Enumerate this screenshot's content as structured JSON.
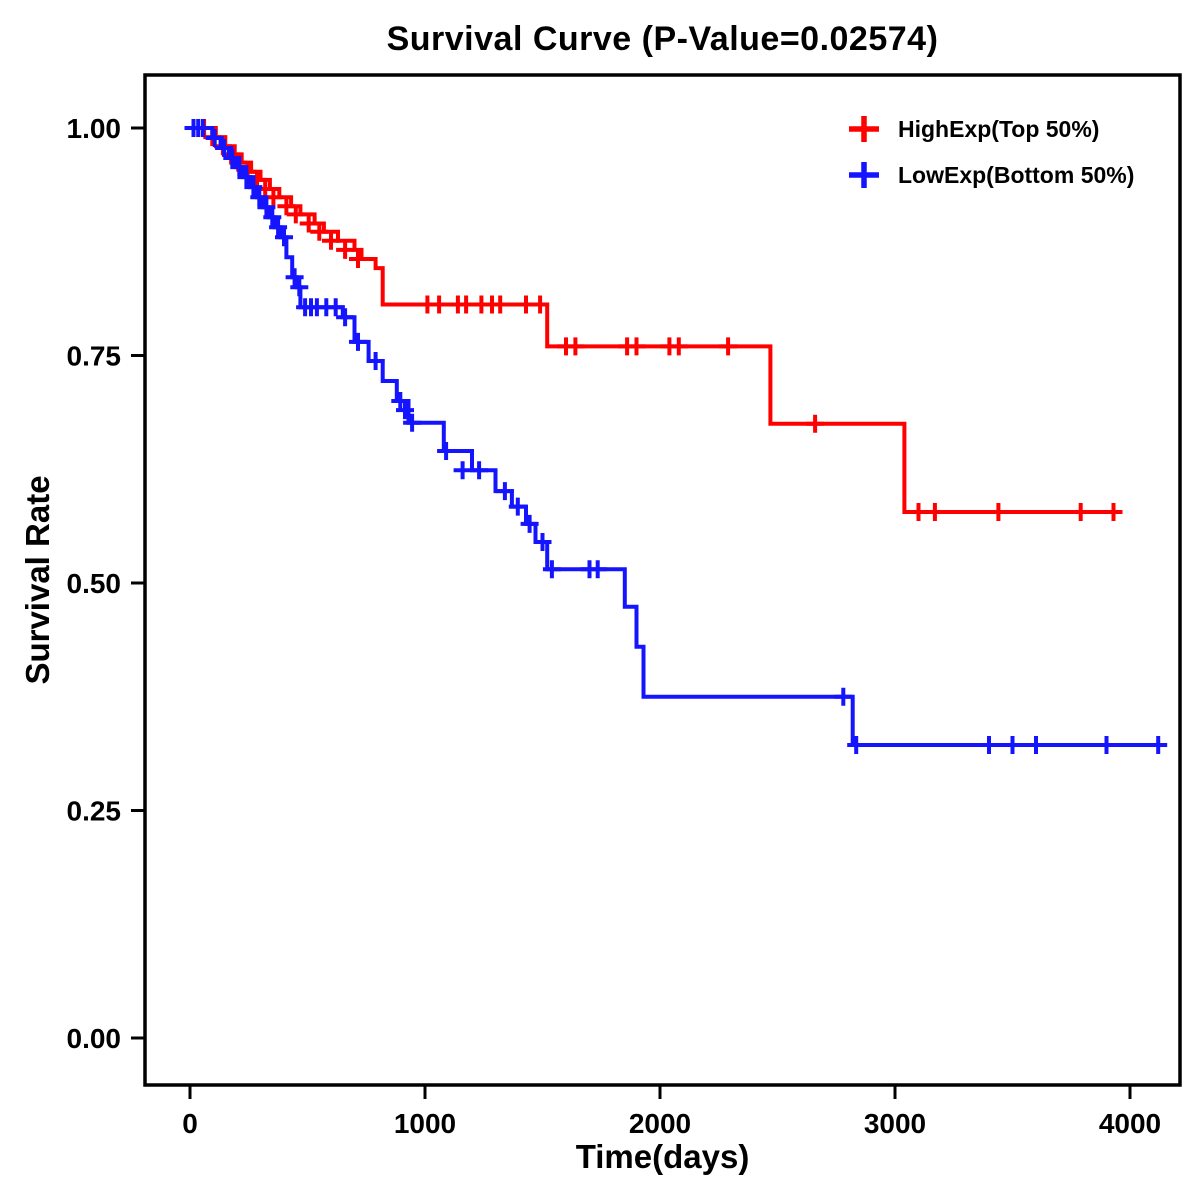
{
  "chart_data": {
    "type": "line",
    "subtype": "kaplan-meier-step",
    "title": "Survival Curve (P-Value=0.02574)",
    "p_value": 0.02574,
    "xlabel": "Time(days)",
    "ylabel": "Survival Rate",
    "xlim": [
      0,
      4200
    ],
    "ylim": [
      0.0,
      1.0
    ],
    "grid": false,
    "legend_position": "top-right",
    "x_ticks": [
      0,
      1000,
      2000,
      3000,
      4000
    ],
    "x_tick_labels": [
      "0",
      "1000",
      "2000",
      "3000",
      "4000"
    ],
    "y_ticks": [
      0.0,
      0.25,
      0.5,
      0.75,
      1.0
    ],
    "y_tick_labels": [
      "0.00",
      "0.25",
      "0.50",
      "0.75",
      "1.00"
    ],
    "series": [
      {
        "name": "HighExp(Top 50%)",
        "color": "#FF0000",
        "steps": [
          [
            0,
            1.0
          ],
          [
            110,
            0.99
          ],
          [
            150,
            0.98
          ],
          [
            190,
            0.971
          ],
          [
            220,
            0.962
          ],
          [
            260,
            0.952
          ],
          [
            300,
            0.943
          ],
          [
            340,
            0.933
          ],
          [
            380,
            0.924
          ],
          [
            430,
            0.914
          ],
          [
            470,
            0.905
          ],
          [
            530,
            0.895
          ],
          [
            570,
            0.886
          ],
          [
            630,
            0.876
          ],
          [
            700,
            0.866
          ],
          [
            730,
            0.856
          ],
          [
            790,
            0.846
          ],
          [
            820,
            0.806
          ],
          [
            1520,
            0.76
          ],
          [
            2470,
            0.675
          ],
          [
            3040,
            0.578
          ],
          [
            3950,
            0.578
          ]
        ],
        "censors": [
          [
            60,
            1.0
          ],
          [
            95,
            0.99
          ],
          [
            140,
            0.98
          ],
          [
            175,
            0.971
          ],
          [
            205,
            0.962
          ],
          [
            245,
            0.952
          ],
          [
            285,
            0.943
          ],
          [
            320,
            0.933
          ],
          [
            355,
            0.924
          ],
          [
            410,
            0.914
          ],
          [
            450,
            0.905
          ],
          [
            505,
            0.895
          ],
          [
            550,
            0.886
          ],
          [
            600,
            0.876
          ],
          [
            660,
            0.866
          ],
          [
            715,
            0.856
          ],
          [
            1010,
            0.806
          ],
          [
            1060,
            0.806
          ],
          [
            1140,
            0.806
          ],
          [
            1175,
            0.806
          ],
          [
            1240,
            0.806
          ],
          [
            1285,
            0.806
          ],
          [
            1320,
            0.806
          ],
          [
            1430,
            0.806
          ],
          [
            1490,
            0.806
          ],
          [
            1600,
            0.76
          ],
          [
            1640,
            0.76
          ],
          [
            1860,
            0.76
          ],
          [
            1900,
            0.76
          ],
          [
            2040,
            0.76
          ],
          [
            2080,
            0.76
          ],
          [
            2290,
            0.76
          ],
          [
            2660,
            0.675
          ],
          [
            3100,
            0.578
          ],
          [
            3170,
            0.578
          ],
          [
            3440,
            0.578
          ],
          [
            3790,
            0.578
          ],
          [
            3930,
            0.578
          ]
        ]
      },
      {
        "name": "LowExp(Bottom 50%)",
        "color": "#1414FF",
        "steps": [
          [
            0,
            1.0
          ],
          [
            95,
            0.989
          ],
          [
            130,
            0.978
          ],
          [
            165,
            0.967
          ],
          [
            195,
            0.957
          ],
          [
            225,
            0.946
          ],
          [
            255,
            0.935
          ],
          [
            285,
            0.924
          ],
          [
            310,
            0.913
          ],
          [
            335,
            0.902
          ],
          [
            360,
            0.891
          ],
          [
            385,
            0.88
          ],
          [
            410,
            0.858
          ],
          [
            435,
            0.836
          ],
          [
            455,
            0.825
          ],
          [
            470,
            0.803
          ],
          [
            650,
            0.792
          ],
          [
            700,
            0.765
          ],
          [
            760,
            0.744
          ],
          [
            820,
            0.722
          ],
          [
            880,
            0.7
          ],
          [
            930,
            0.676
          ],
          [
            1080,
            0.645
          ],
          [
            1200,
            0.624
          ],
          [
            1300,
            0.601
          ],
          [
            1370,
            0.584
          ],
          [
            1430,
            0.565
          ],
          [
            1470,
            0.545
          ],
          [
            1520,
            0.515
          ],
          [
            1850,
            0.474
          ],
          [
            1900,
            0.43
          ],
          [
            1930,
            0.375
          ],
          [
            2820,
            0.322
          ],
          [
            4150,
            0.322
          ]
        ],
        "censors": [
          [
            15,
            1.0
          ],
          [
            35,
            1.0
          ],
          [
            55,
            1.0
          ],
          [
            105,
            0.989
          ],
          [
            145,
            0.978
          ],
          [
            180,
            0.967
          ],
          [
            210,
            0.957
          ],
          [
            240,
            0.946
          ],
          [
            270,
            0.935
          ],
          [
            295,
            0.924
          ],
          [
            325,
            0.913
          ],
          [
            350,
            0.902
          ],
          [
            375,
            0.891
          ],
          [
            400,
            0.88
          ],
          [
            445,
            0.836
          ],
          [
            465,
            0.825
          ],
          [
            490,
            0.803
          ],
          [
            515,
            0.803
          ],
          [
            540,
            0.803
          ],
          [
            580,
            0.803
          ],
          [
            620,
            0.803
          ],
          [
            660,
            0.792
          ],
          [
            715,
            0.765
          ],
          [
            790,
            0.744
          ],
          [
            895,
            0.7
          ],
          [
            915,
            0.69
          ],
          [
            945,
            0.676
          ],
          [
            1090,
            0.645
          ],
          [
            1160,
            0.624
          ],
          [
            1230,
            0.624
          ],
          [
            1340,
            0.601
          ],
          [
            1395,
            0.584
          ],
          [
            1445,
            0.565
          ],
          [
            1500,
            0.545
          ],
          [
            1540,
            0.515
          ],
          [
            1700,
            0.515
          ],
          [
            1735,
            0.515
          ],
          [
            2780,
            0.375
          ],
          [
            2835,
            0.322
          ],
          [
            3400,
            0.322
          ],
          [
            3500,
            0.322
          ],
          [
            3600,
            0.322
          ],
          [
            3900,
            0.322
          ],
          [
            4120,
            0.322
          ]
        ]
      }
    ]
  }
}
